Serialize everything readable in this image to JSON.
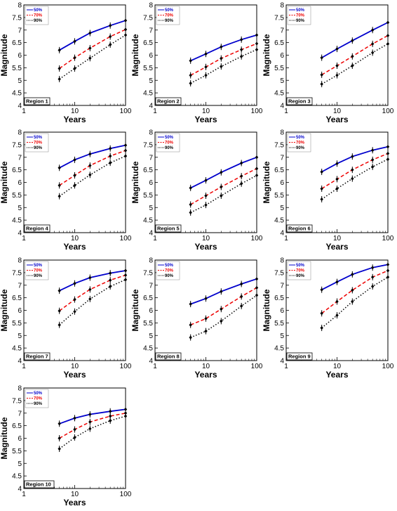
{
  "chart_data": [
    {
      "type": "line",
      "label": "Region 1",
      "x": [
        5,
        10,
        20,
        50,
        100
      ],
      "xlabel": "Years",
      "ylabel": "Magnitude",
      "xscale": "log",
      "xlim": [
        1,
        100
      ],
      "ylim": [
        4,
        8
      ],
      "xticks": [
        "1",
        "10",
        "100"
      ],
      "yticks": [
        "4",
        "4.5",
        "5",
        "5.5",
        "6",
        "6.5",
        "7",
        "7.5",
        "8"
      ],
      "legend_position": "top-left",
      "series": [
        {
          "name": "50%",
          "color": "#0000cc",
          "style": "solid",
          "values": [
            6.2,
            6.55,
            6.88,
            7.18,
            7.38
          ]
        },
        {
          "name": "70%",
          "color": "#ee0000",
          "style": "dashed",
          "values": [
            5.47,
            5.9,
            6.28,
            6.74,
            7.02
          ]
        },
        {
          "name": "90%",
          "color": "#000000",
          "style": "dotted",
          "values": [
            5.05,
            5.47,
            5.88,
            6.42,
            6.8
          ]
        }
      ]
    },
    {
      "type": "line",
      "label": "Region 2",
      "x": [
        5,
        10,
        20,
        50,
        100
      ],
      "xlabel": "Years",
      "ylabel": "Magnitude",
      "xscale": "log",
      "xlim": [
        1,
        100
      ],
      "ylim": [
        4,
        8
      ],
      "xticks": [
        "1",
        "10",
        "100"
      ],
      "yticks": [
        "4",
        "4.5",
        "5",
        "5.5",
        "6",
        "6.5",
        "7",
        "7.5",
        "8"
      ],
      "legend_position": "top-left",
      "series": [
        {
          "name": "50%",
          "color": "#0000cc",
          "style": "solid",
          "values": [
            5.78,
            6.05,
            6.33,
            6.62,
            6.8
          ]
        },
        {
          "name": "70%",
          "color": "#ee0000",
          "style": "dashed",
          "values": [
            5.2,
            5.53,
            5.87,
            6.22,
            6.46
          ]
        },
        {
          "name": "90%",
          "color": "#000000",
          "style": "dotted",
          "values": [
            4.88,
            5.2,
            5.55,
            5.95,
            6.22
          ]
        }
      ]
    },
    {
      "type": "line",
      "label": "Region 3",
      "x": [
        5,
        10,
        20,
        50,
        100
      ],
      "xlabel": "Years",
      "ylabel": "Magnitude",
      "xscale": "log",
      "xlim": [
        1,
        100
      ],
      "ylim": [
        4,
        8
      ],
      "xticks": [
        "1",
        "10",
        "100"
      ],
      "yticks": [
        "4",
        "4.5",
        "5",
        "5.5",
        "6",
        "6.5",
        "7",
        "7.5",
        "8"
      ],
      "legend_position": "top-left",
      "series": [
        {
          "name": "50%",
          "color": "#0000cc",
          "style": "solid",
          "values": [
            5.9,
            6.25,
            6.58,
            7.0,
            7.3
          ]
        },
        {
          "name": "70%",
          "color": "#ee0000",
          "style": "dashed",
          "values": [
            5.22,
            5.58,
            5.95,
            6.45,
            6.78
          ]
        },
        {
          "name": "90%",
          "color": "#000000",
          "style": "dotted",
          "values": [
            4.85,
            5.2,
            5.58,
            6.1,
            6.45
          ]
        }
      ]
    },
    {
      "type": "line",
      "label": "Region 4",
      "x": [
        5,
        10,
        20,
        50,
        100
      ],
      "xlabel": "Years",
      "ylabel": "Magnitude",
      "xscale": "log",
      "xlim": [
        1,
        100
      ],
      "ylim": [
        4,
        8
      ],
      "xticks": [
        "1",
        "10",
        "100"
      ],
      "yticks": [
        "4",
        "4.5",
        "5",
        "5.5",
        "6",
        "6.5",
        "7",
        "7.5",
        "8"
      ],
      "legend_position": "top-left",
      "series": [
        {
          "name": "50%",
          "color": "#0000cc",
          "style": "solid",
          "values": [
            6.58,
            6.9,
            7.13,
            7.35,
            7.48
          ]
        },
        {
          "name": "70%",
          "color": "#ee0000",
          "style": "dashed",
          "values": [
            5.88,
            6.28,
            6.67,
            7.05,
            7.27
          ]
        },
        {
          "name": "90%",
          "color": "#000000",
          "style": "dotted",
          "values": [
            5.45,
            5.88,
            6.3,
            6.78,
            7.05
          ]
        }
      ]
    },
    {
      "type": "line",
      "label": "Region 5",
      "x": [
        5,
        10,
        20,
        50,
        100
      ],
      "xlabel": "Years",
      "ylabel": "Magnitude",
      "xscale": "log",
      "xlim": [
        1,
        100
      ],
      "ylim": [
        4,
        8
      ],
      "xticks": [
        "1",
        "10",
        "100"
      ],
      "yticks": [
        "4",
        "4.5",
        "5",
        "5.5",
        "6",
        "6.5",
        "7",
        "7.5",
        "8"
      ],
      "legend_position": "top-left",
      "series": [
        {
          "name": "50%",
          "color": "#0000cc",
          "style": "solid",
          "values": [
            5.78,
            6.08,
            6.4,
            6.77,
            7.0
          ]
        },
        {
          "name": "70%",
          "color": "#ee0000",
          "style": "dashed",
          "values": [
            5.12,
            5.47,
            5.82,
            6.25,
            6.55
          ]
        },
        {
          "name": "90%",
          "color": "#000000",
          "style": "dotted",
          "values": [
            4.8,
            5.1,
            5.47,
            5.95,
            6.28
          ]
        }
      ]
    },
    {
      "type": "line",
      "label": "Region 6",
      "x": [
        5,
        10,
        20,
        50,
        100
      ],
      "xlabel": "Years",
      "ylabel": "Magnitude",
      "xscale": "log",
      "xlim": [
        1,
        100
      ],
      "ylim": [
        4,
        8
      ],
      "xticks": [
        "1",
        "10",
        "100"
      ],
      "yticks": [
        "4",
        "4.5",
        "5",
        "5.5",
        "6",
        "6.5",
        "7",
        "7.5",
        "8"
      ],
      "legend_position": "top-left",
      "series": [
        {
          "name": "50%",
          "color": "#0000cc",
          "style": "solid",
          "values": [
            6.42,
            6.75,
            7.03,
            7.28,
            7.42
          ]
        },
        {
          "name": "70%",
          "color": "#ee0000",
          "style": "dashed",
          "values": [
            5.75,
            6.13,
            6.5,
            6.9,
            7.15
          ]
        },
        {
          "name": "90%",
          "color": "#000000",
          "style": "dotted",
          "values": [
            5.33,
            5.75,
            6.15,
            6.62,
            6.92
          ]
        }
      ]
    },
    {
      "type": "line",
      "label": "Region 7",
      "x": [
        5,
        10,
        20,
        50,
        100
      ],
      "xlabel": "Years",
      "ylabel": "Magnitude",
      "xscale": "log",
      "xlim": [
        1,
        100
      ],
      "ylim": [
        4,
        8
      ],
      "xticks": [
        "1",
        "10",
        "100"
      ],
      "yticks": [
        "4",
        "4.5",
        "5",
        "5.5",
        "6",
        "6.5",
        "7",
        "7.5",
        "8"
      ],
      "legend_position": "top-left",
      "series": [
        {
          "name": "50%",
          "color": "#0000cc",
          "style": "solid",
          "values": [
            6.78,
            7.07,
            7.3,
            7.48,
            7.58
          ]
        },
        {
          "name": "70%",
          "color": "#ee0000",
          "style": "dashed",
          "values": [
            5.98,
            6.43,
            6.83,
            7.2,
            7.4
          ]
        },
        {
          "name": "90%",
          "color": "#000000",
          "style": "dotted",
          "values": [
            5.42,
            5.95,
            6.45,
            6.95,
            7.22
          ]
        }
      ]
    },
    {
      "type": "line",
      "label": "Region 8",
      "x": [
        5,
        10,
        20,
        50,
        100
      ],
      "xlabel": "Years",
      "ylabel": "Magnitude",
      "xscale": "log",
      "xlim": [
        1,
        100
      ],
      "ylim": [
        4,
        8
      ],
      "xticks": [
        "1",
        "10",
        "100"
      ],
      "yticks": [
        "4",
        "4.5",
        "5",
        "5.5",
        "6",
        "6.5",
        "7",
        "7.5",
        "8"
      ],
      "legend_position": "top-left",
      "series": [
        {
          "name": "50%",
          "color": "#0000cc",
          "style": "solid",
          "values": [
            6.25,
            6.47,
            6.75,
            7.05,
            7.25
          ]
        },
        {
          "name": "70%",
          "color": "#ee0000",
          "style": "dashed",
          "values": [
            5.42,
            5.67,
            6.05,
            6.55,
            6.9
          ]
        },
        {
          "name": "90%",
          "color": "#000000",
          "style": "dotted",
          "values": [
            4.92,
            5.17,
            5.57,
            6.17,
            6.6
          ]
        }
      ]
    },
    {
      "type": "line",
      "label": "Region 9",
      "x": [
        5,
        10,
        20,
        50,
        100
      ],
      "xlabel": "Years",
      "ylabel": "Magnitude",
      "xscale": "log",
      "xlim": [
        1,
        100
      ],
      "ylim": [
        4,
        8
      ],
      "xticks": [
        "1",
        "10",
        "100"
      ],
      "yticks": [
        "4",
        "4.5",
        "5",
        "5.5",
        "6",
        "6.5",
        "7",
        "7.5",
        "8"
      ],
      "legend_position": "top-left",
      "series": [
        {
          "name": "50%",
          "color": "#0000cc",
          "style": "solid",
          "values": [
            6.82,
            7.13,
            7.43,
            7.7,
            7.82
          ]
        },
        {
          "name": "70%",
          "color": "#ee0000",
          "style": "dashed",
          "values": [
            5.88,
            6.35,
            6.8,
            7.32,
            7.58
          ]
        },
        {
          "name": "90%",
          "color": "#000000",
          "style": "dotted",
          "values": [
            5.3,
            5.8,
            6.35,
            6.95,
            7.32
          ]
        }
      ]
    },
    {
      "type": "line",
      "label": "Region 10",
      "x": [
        5,
        10,
        20,
        50,
        100
      ],
      "xlabel": "Years",
      "ylabel": "Magnitude",
      "xscale": "log",
      "xlim": [
        1,
        100
      ],
      "ylim": [
        4,
        8
      ],
      "xticks": [
        "1",
        "10",
        "100"
      ],
      "yticks": [
        "4",
        "4.5",
        "5",
        "5.5",
        "6",
        "6.5",
        "7",
        "7.5",
        "8"
      ],
      "legend_position": "top-left",
      "series": [
        {
          "name": "50%",
          "color": "#0000cc",
          "style": "solid",
          "values": [
            6.58,
            6.8,
            6.95,
            7.07,
            7.15
          ]
        },
        {
          "name": "70%",
          "color": "#ee0000",
          "style": "dashed",
          "values": [
            6.0,
            6.35,
            6.65,
            6.88,
            7.0
          ]
        },
        {
          "name": "90%",
          "color": "#000000",
          "style": "dotted",
          "values": [
            5.58,
            6.03,
            6.38,
            6.7,
            6.88
          ]
        }
      ]
    }
  ]
}
